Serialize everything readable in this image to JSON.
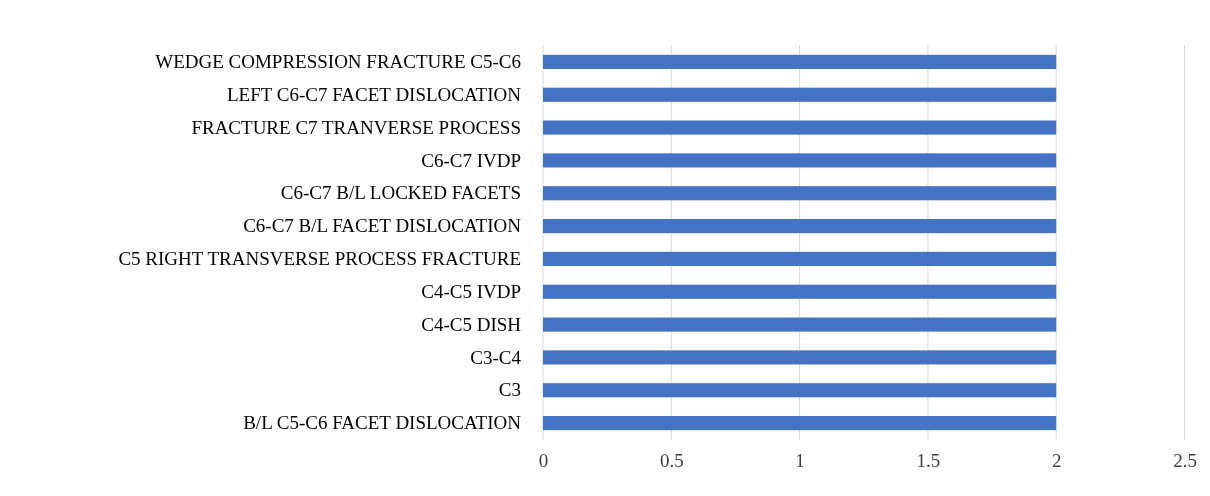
{
  "chart_data": {
    "type": "bar",
    "orientation": "horizontal",
    "categories": [
      "WEDGE COMPRESSION FRACTURE C5-C6",
      "LEFT C6-C7 FACET DISLOCATION",
      "FRACTURE C7 TRANVERSE PROCESS",
      "C6-C7 IVDP",
      "C6-C7 B/L LOCKED FACETS",
      "C6-C7 B/L FACET DISLOCATION",
      "C5 RIGHT TRANSVERSE PROCESS FRACTURE",
      "C4-C5 IVDP",
      "C4-C5 DISH",
      "C3-C4",
      "C3",
      "B/L C5-C6 FACET DISLOCATION"
    ],
    "values": [
      2,
      2,
      2,
      2,
      2,
      2,
      2,
      2,
      2,
      2,
      2,
      2
    ],
    "color": "#4472c4",
    "xlim": [
      0,
      2.5
    ],
    "xticks": [
      0,
      0.5,
      1,
      1.5,
      2,
      2.5
    ],
    "grid": "x"
  }
}
